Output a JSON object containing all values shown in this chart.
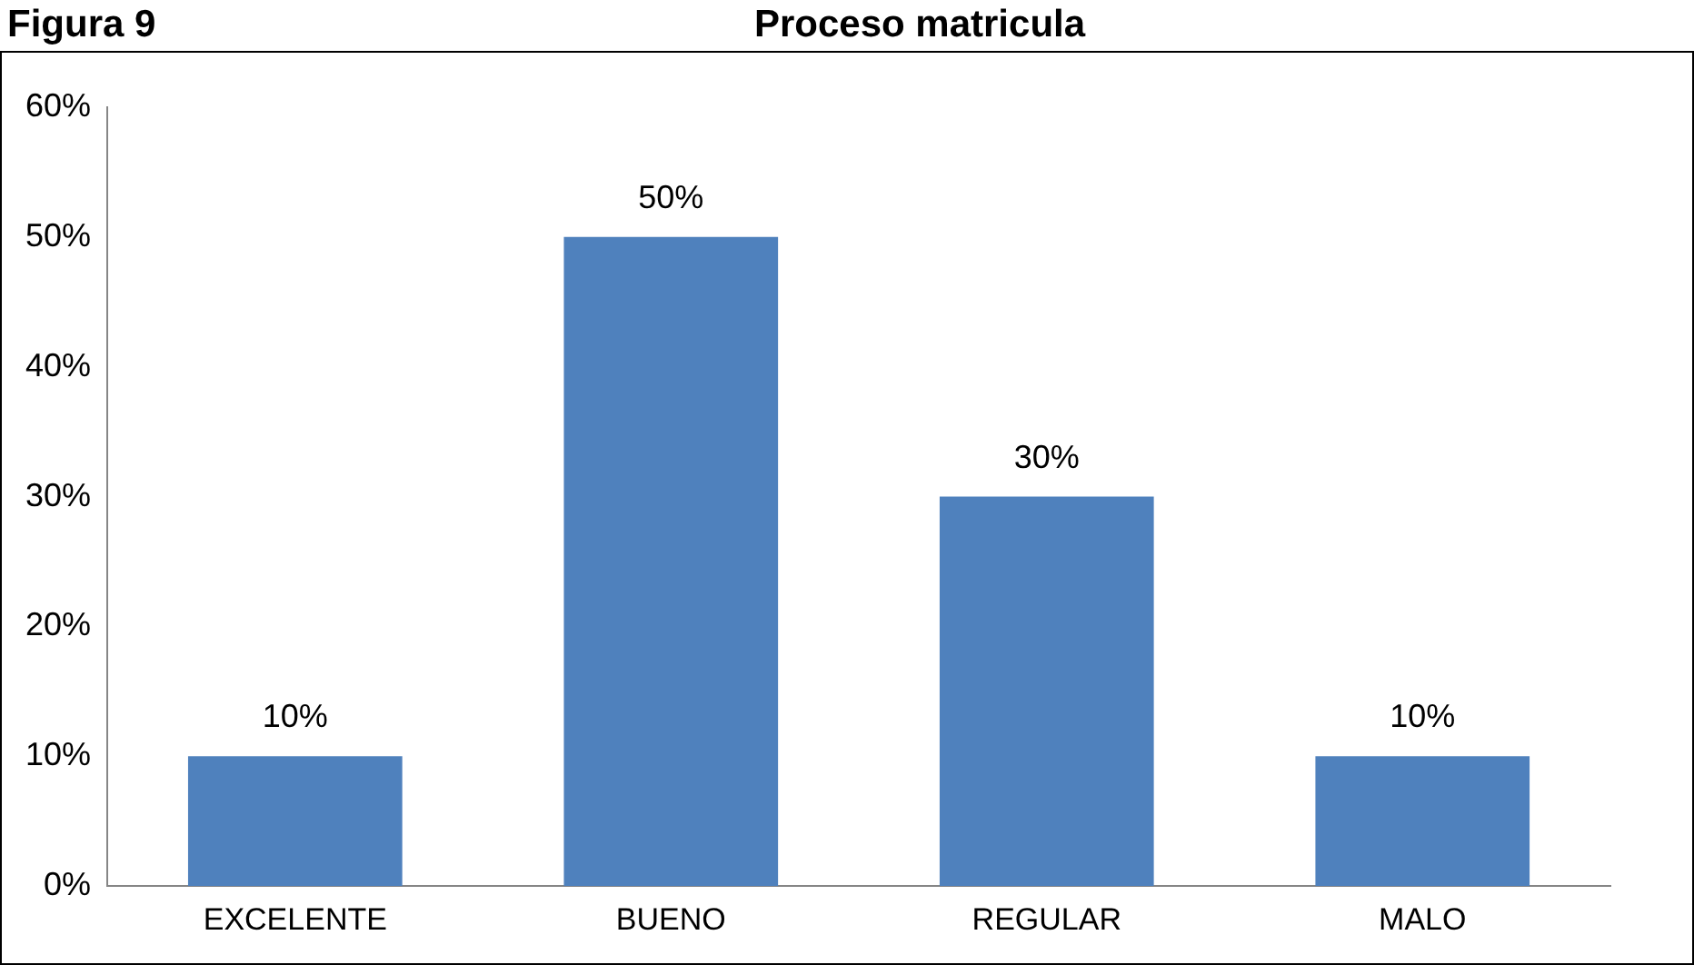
{
  "chart_data": {
    "type": "bar",
    "title": "Proceso matricula",
    "annotations": [
      "Figura 9"
    ],
    "categories": [
      "EXCELENTE",
      "BUENO",
      "REGULAR",
      "MALO"
    ],
    "values": [
      10,
      50,
      30,
      10
    ],
    "color": "#4f81bd",
    "value_labels": [
      "10%",
      "50%",
      "30%",
      "10%"
    ],
    "ylim": [
      0,
      60
    ],
    "yticks": [
      {
        "value": 0,
        "label": "0%"
      },
      {
        "value": 10,
        "label": "10%"
      },
      {
        "value": 20,
        "label": "20%"
      },
      {
        "value": 30,
        "label": "30%"
      },
      {
        "value": 40,
        "label": "40%"
      },
      {
        "value": 50,
        "label": "50%"
      },
      {
        "value": 60,
        "label": "60%"
      }
    ],
    "grid": false,
    "legend": false
  }
}
